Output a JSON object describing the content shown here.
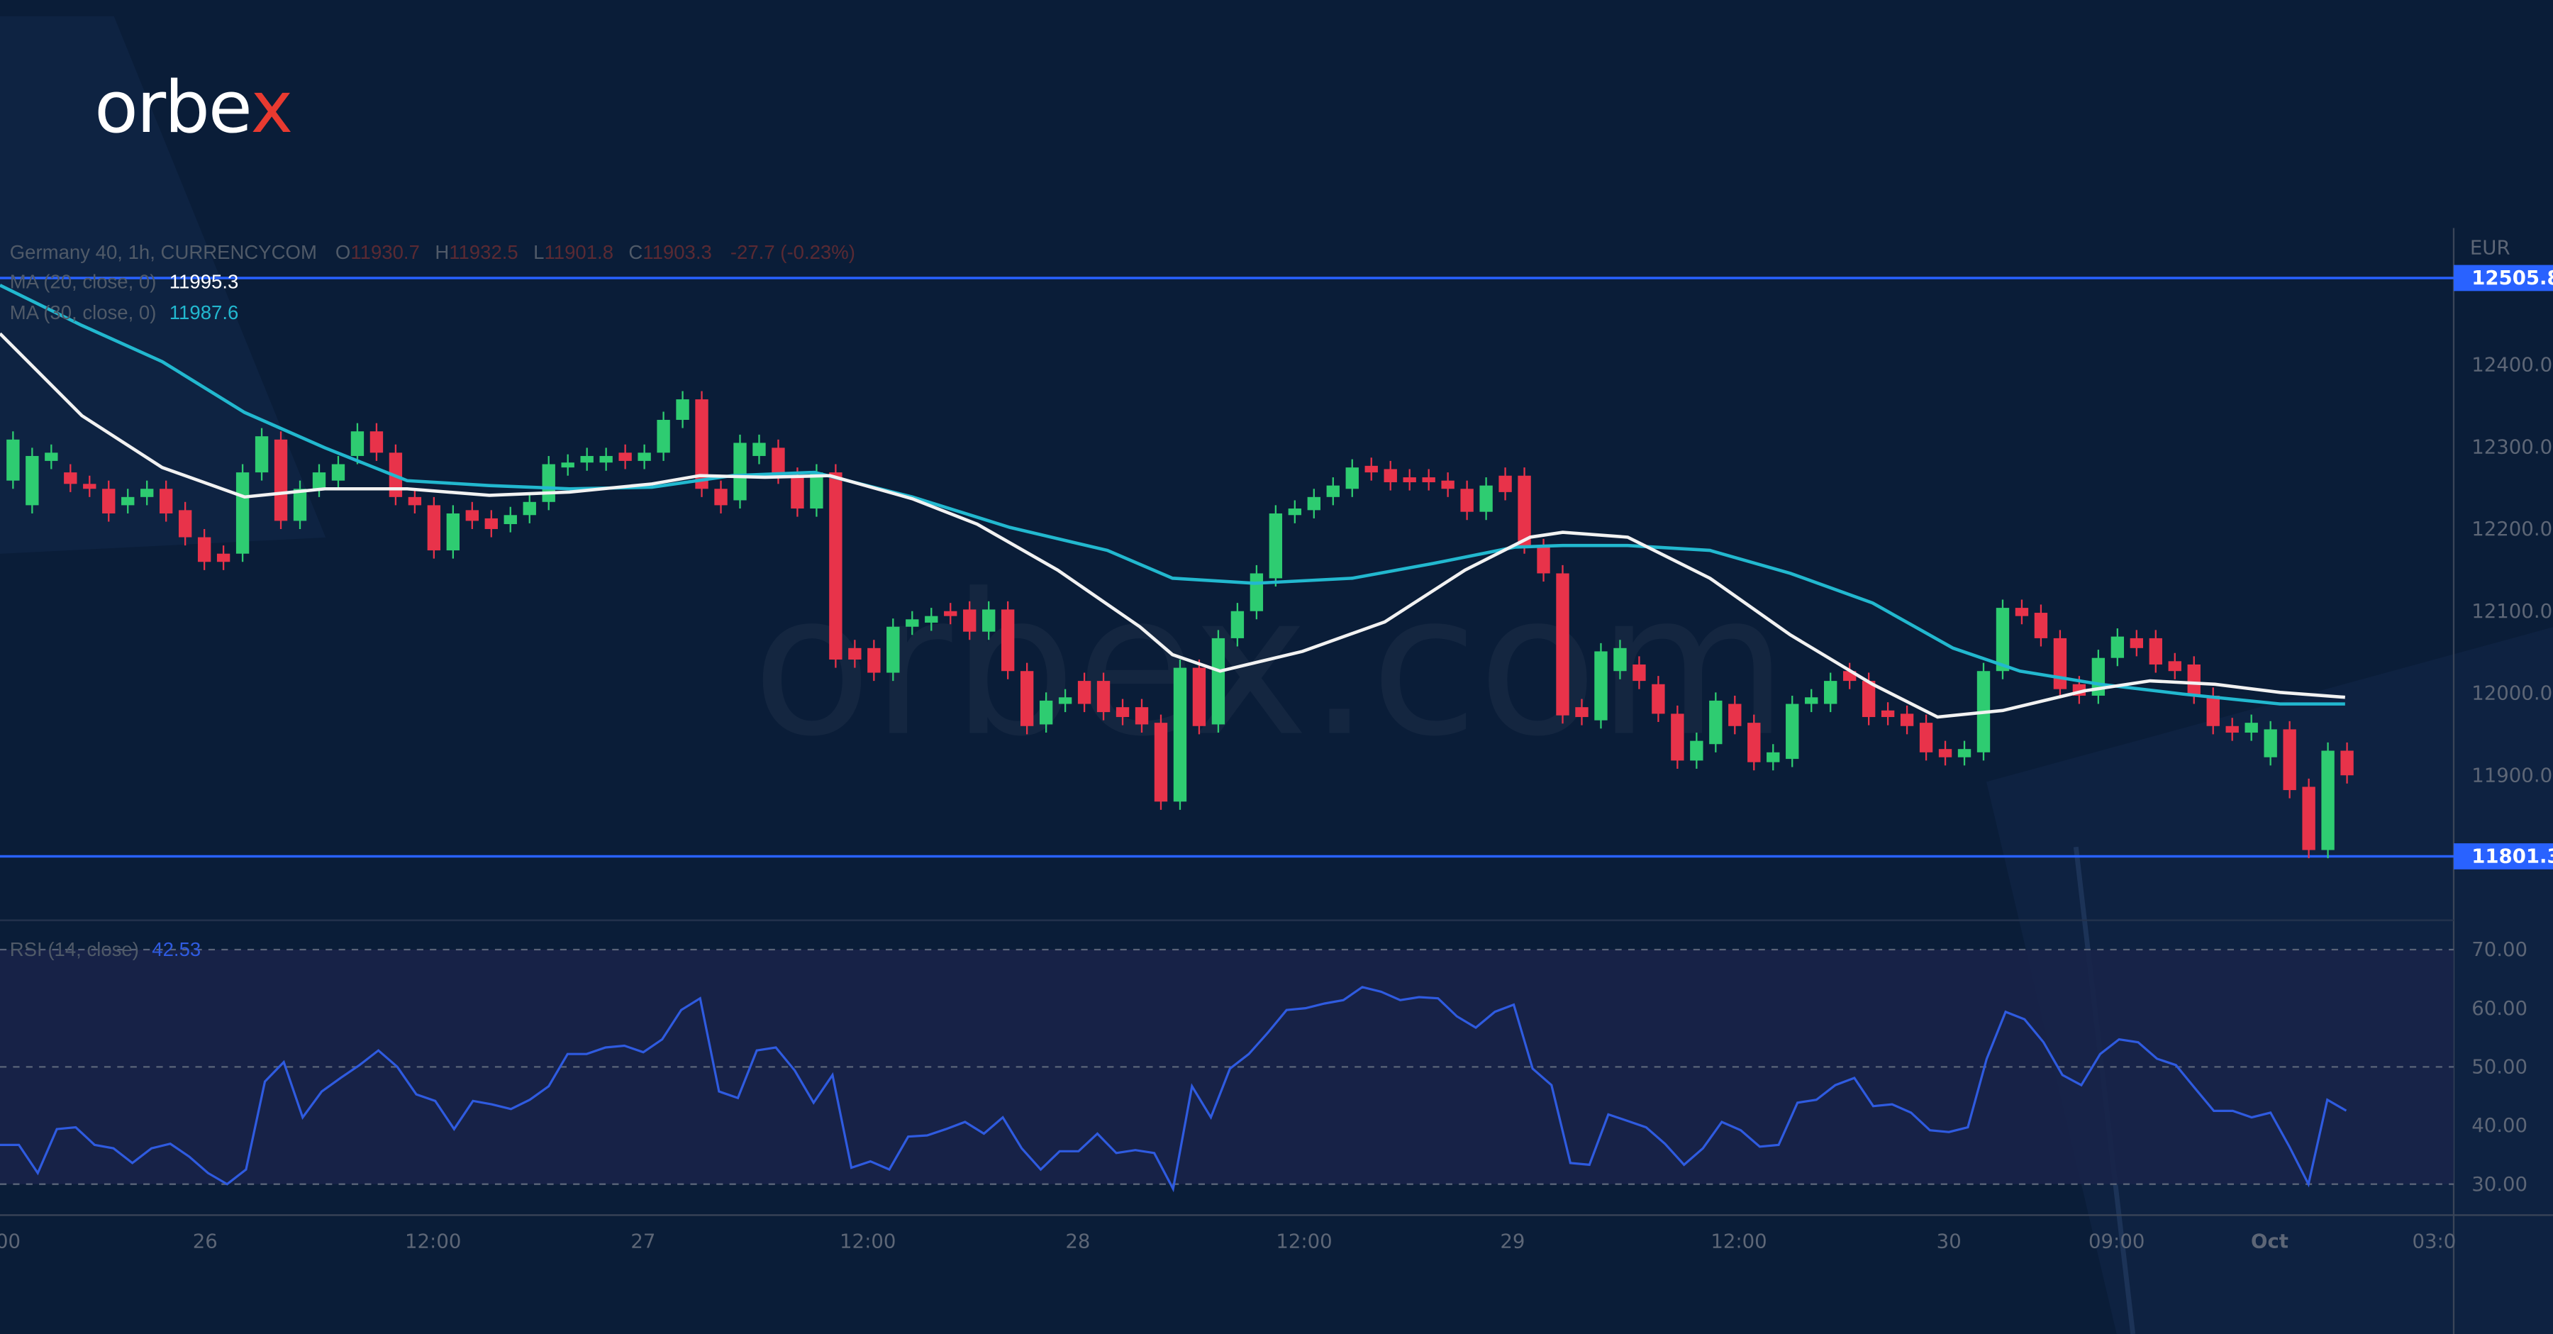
{
  "brand": {
    "logo_text": "orbe",
    "logo_accent": "x",
    "watermark": "orbex.com"
  },
  "legend": {
    "symbol": "Germany 40, 1h, CURRENCYCOM",
    "o_label": "O",
    "o": "11930.7",
    "h_label": "H",
    "h": "11932.5",
    "l_label": "L",
    "l": "11901.8",
    "c_label": "C",
    "c": "11903.3",
    "change": "-27.7 (-0.23%)",
    "ma20_label": "MA (20, close, 0)",
    "ma20_value": "11995.3",
    "ma30_label": "MA (30, close, 0)",
    "ma30_value": "11987.6",
    "rsi_label": "RSI (14, close)",
    "rsi_value": "42.53"
  },
  "colors": {
    "bg": "#0a1d38",
    "up": "#2ecc71",
    "down": "#e8334a",
    "ma20": "#f2f2f2",
    "ma30": "#22b8cf",
    "level": "#2962ff",
    "rsi": "#2f5be0"
  },
  "chart_data": {
    "type": "candlestick",
    "title": "Germany 40, 1h, CURRENCYCOM",
    "currency": "EUR",
    "ylim": [
      11700,
      12550
    ],
    "y_ticks": [
      "12400.0",
      "12300.0",
      "12200.0",
      "12100.0",
      "12000.0",
      "11900.0"
    ],
    "x_ticks": [
      "00",
      "26",
      "12:00",
      "27",
      "12:00",
      "28",
      "12:00",
      "29",
      "12:00",
      "30",
      "09:00",
      "Oct",
      "03:0"
    ],
    "levels": [
      {
        "price": 12505.8,
        "label": "12505.8"
      },
      {
        "price": 11801.3,
        "label": "11801.3"
      }
    ],
    "candles_oc": [
      [
        12259,
        12309
      ],
      [
        12229,
        12289
      ],
      [
        12283,
        12293
      ],
      [
        12269,
        12255
      ],
      [
        12255,
        12249
      ],
      [
        12249,
        12219
      ],
      [
        12229,
        12239
      ],
      [
        12239,
        12249
      ],
      [
        12249,
        12219
      ],
      [
        12223,
        12190
      ],
      [
        12190,
        12160
      ],
      [
        12170,
        12160
      ],
      [
        12170,
        12269
      ],
      [
        12269,
        12313
      ],
      [
        12309,
        12210
      ],
      [
        12210,
        12249
      ],
      [
        12249,
        12269
      ],
      [
        12259,
        12279
      ],
      [
        12289,
        12319
      ],
      [
        12319,
        12293
      ],
      [
        12293,
        12239
      ],
      [
        12239,
        12229
      ],
      [
        12229,
        12174
      ],
      [
        12174,
        12219
      ],
      [
        12223,
        12210
      ],
      [
        12213,
        12200
      ],
      [
        12206,
        12217
      ],
      [
        12217,
        12233
      ],
      [
        12233,
        12279
      ],
      [
        12275,
        12281
      ],
      [
        12281,
        12289
      ],
      [
        12281,
        12289
      ],
      [
        12293,
        12283
      ],
      [
        12283,
        12293
      ],
      [
        12293,
        12333
      ],
      [
        12333,
        12358
      ],
      [
        12358,
        12249
      ],
      [
        12249,
        12229
      ],
      [
        12235,
        12305
      ],
      [
        12289,
        12305
      ],
      [
        12299,
        12265
      ],
      [
        12265,
        12225
      ],
      [
        12225,
        12269
      ],
      [
        12269,
        12041
      ],
      [
        12055,
        12041
      ],
      [
        12055,
        12025
      ],
      [
        12025,
        12081
      ],
      [
        12081,
        12090
      ],
      [
        12086,
        12094
      ],
      [
        12100,
        12094
      ],
      [
        12102,
        12075
      ],
      [
        12075,
        12102
      ],
      [
        12102,
        12027
      ],
      [
        12027,
        11960
      ],
      [
        11962,
        11991
      ],
      [
        11987,
        11995
      ],
      [
        12015,
        11987
      ],
      [
        12015,
        11977
      ],
      [
        11983,
        11971
      ],
      [
        11983,
        11962
      ],
      [
        11964,
        11868
      ],
      [
        11868,
        12031
      ],
      [
        12031,
        11960
      ],
      [
        11962,
        12067
      ],
      [
        12067,
        12100
      ],
      [
        12100,
        12146
      ],
      [
        12140,
        12219
      ],
      [
        12217,
        12225
      ],
      [
        12223,
        12239
      ],
      [
        12239,
        12253
      ],
      [
        12249,
        12275
      ],
      [
        12277,
        12269
      ],
      [
        12273,
        12257
      ],
      [
        12263,
        12257
      ],
      [
        12263,
        12257
      ],
      [
        12259,
        12249
      ],
      [
        12249,
        12221
      ],
      [
        12221,
        12253
      ],
      [
        12265,
        12245
      ],
      [
        12265,
        12180
      ],
      [
        12178,
        12146
      ],
      [
        12146,
        11973
      ],
      [
        11983,
        11971
      ],
      [
        11967,
        12051
      ],
      [
        12027,
        12055
      ],
      [
        12035,
        12015
      ],
      [
        12011,
        11975
      ],
      [
        11975,
        11918
      ],
      [
        11918,
        11942
      ],
      [
        11938,
        11991
      ],
      [
        11987,
        11960
      ],
      [
        11964,
        11916
      ],
      [
        11916,
        11928
      ],
      [
        11920,
        11987
      ],
      [
        11987,
        11995
      ],
      [
        11987,
        12015
      ],
      [
        12027,
        12015
      ],
      [
        12015,
        11971
      ],
      [
        11979,
        11971
      ],
      [
        11975,
        11960
      ],
      [
        11964,
        11928
      ],
      [
        11932,
        11922
      ],
      [
        11922,
        11932
      ],
      [
        11928,
        12027
      ],
      [
        12027,
        12104
      ],
      [
        12104,
        12094
      ],
      [
        12098,
        12067
      ],
      [
        12067,
        12005
      ],
      [
        12011,
        11997
      ],
      [
        11997,
        12043
      ],
      [
        12043,
        12069
      ],
      [
        12067,
        12055
      ],
      [
        12067,
        12035
      ],
      [
        12039,
        12027
      ],
      [
        12035,
        11997
      ],
      [
        11997,
        11960
      ],
      [
        11960,
        11952
      ],
      [
        11952,
        11964
      ],
      [
        11922,
        11956
      ],
      [
        11956,
        11882
      ],
      [
        11886,
        11809
      ],
      [
        11809,
        11930
      ],
      [
        11930,
        11900
      ]
    ],
    "ma20": [
      [
        -0.7,
        12438
      ],
      [
        3.6,
        12338
      ],
      [
        7.8,
        12275
      ],
      [
        12.1,
        12239
      ],
      [
        16.3,
        12249
      ],
      [
        20.6,
        12249
      ],
      [
        24.9,
        12241
      ],
      [
        29.1,
        12245
      ],
      [
        33.4,
        12255
      ],
      [
        35.9,
        12265
      ],
      [
        39.3,
        12263
      ],
      [
        42.7,
        12265
      ],
      [
        47,
        12237
      ],
      [
        50.4,
        12206
      ],
      [
        54.6,
        12150
      ],
      [
        58.9,
        12081
      ],
      [
        60.6,
        12047
      ],
      [
        63.1,
        12027
      ],
      [
        67.4,
        12051
      ],
      [
        71.7,
        12087
      ],
      [
        75.9,
        12150
      ],
      [
        79.3,
        12190
      ],
      [
        81,
        12196
      ],
      [
        84.4,
        12190
      ],
      [
        88.7,
        12140
      ],
      [
        92.9,
        12071
      ],
      [
        97.2,
        12011
      ],
      [
        100.6,
        11971
      ],
      [
        104,
        11979
      ],
      [
        108.3,
        12003
      ],
      [
        111.7,
        12015
      ],
      [
        115.1,
        12011
      ],
      [
        118.5,
        12001
      ],
      [
        121.9,
        11995
      ]
    ],
    "ma30": [
      [
        -0.7,
        12497
      ],
      [
        3.6,
        12448
      ],
      [
        7.8,
        12404
      ],
      [
        12.1,
        12342
      ],
      [
        16.3,
        12299
      ],
      [
        20.6,
        12259
      ],
      [
        24.9,
        12253
      ],
      [
        29.1,
        12249
      ],
      [
        33.4,
        12251
      ],
      [
        37.6,
        12265
      ],
      [
        41.9,
        12269
      ],
      [
        47,
        12239
      ],
      [
        52.1,
        12202
      ],
      [
        57.2,
        12174
      ],
      [
        60.6,
        12140
      ],
      [
        64.9,
        12134
      ],
      [
        70,
        12140
      ],
      [
        74.2,
        12158
      ],
      [
        78.5,
        12178
      ],
      [
        81,
        12180
      ],
      [
        84.4,
        12180
      ],
      [
        88.7,
        12174
      ],
      [
        92.9,
        12146
      ],
      [
        97.2,
        12110
      ],
      [
        101.4,
        12055
      ],
      [
        104.9,
        12027
      ],
      [
        109.1,
        12011
      ],
      [
        113.4,
        11999
      ],
      [
        118.5,
        11987
      ],
      [
        121.9,
        11987
      ]
    ],
    "rsi": {
      "ylim": [
        25,
        75
      ],
      "y_ticks": [
        "70.00",
        "60.00",
        "50.00",
        "40.00",
        "30.00"
      ],
      "bands": [
        70,
        50,
        30
      ],
      "values": [
        36.7,
        36.7,
        31.9,
        39.4,
        39.7,
        36.7,
        36.1,
        33.6,
        36.1,
        36.9,
        34.7,
        31.9,
        30.0,
        32.5,
        47.5,
        50.8,
        41.4,
        45.8,
        48.1,
        50.3,
        52.8,
        50.0,
        45.3,
        44.2,
        39.4,
        44.2,
        43.6,
        42.8,
        44.4,
        46.7,
        52.2,
        52.2,
        53.3,
        53.6,
        52.5,
        54.7,
        59.7,
        61.7,
        45.8,
        44.7,
        52.8,
        53.3,
        49.4,
        43.9,
        48.6,
        32.8,
        33.9,
        32.5,
        38.1,
        38.3,
        39.4,
        40.6,
        38.6,
        41.4,
        36.1,
        32.5,
        35.6,
        35.6,
        38.6,
        35.3,
        35.8,
        35.3,
        29.2,
        46.7,
        41.4,
        49.7,
        52.2,
        55.8,
        59.7,
        60.0,
        60.8,
        61.4,
        63.6,
        62.8,
        61.4,
        61.9,
        61.7,
        58.6,
        56.7,
        59.4,
        60.6,
        49.7,
        46.9,
        33.6,
        33.3,
        41.9,
        40.8,
        39.7,
        36.9,
        33.3,
        36.1,
        40.6,
        39.2,
        36.4,
        36.7,
        43.9,
        44.4,
        46.9,
        48.1,
        43.3,
        43.6,
        42.2,
        39.2,
        38.9,
        39.7,
        51.4,
        59.4,
        58.1,
        54.2,
        48.6,
        46.9,
        52.2,
        54.7,
        54.2,
        51.4,
        50.3,
        46.4,
        42.5,
        42.5,
        41.4,
        42.2,
        36.4,
        30.0,
        44.4,
        42.53
      ]
    }
  }
}
